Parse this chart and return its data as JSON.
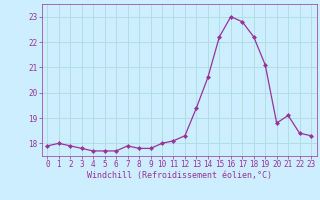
{
  "x": [
    0,
    1,
    2,
    3,
    4,
    5,
    6,
    7,
    8,
    9,
    10,
    11,
    12,
    13,
    14,
    15,
    16,
    17,
    18,
    19,
    20,
    21,
    22,
    23
  ],
  "y": [
    17.9,
    18.0,
    17.9,
    17.8,
    17.7,
    17.7,
    17.7,
    17.9,
    17.8,
    17.8,
    18.0,
    18.1,
    18.3,
    19.4,
    20.6,
    22.2,
    23.0,
    22.8,
    22.2,
    21.1,
    18.8,
    19.1,
    18.4,
    18.3
  ],
  "line_color": "#993399",
  "marker": "D",
  "marker_size": 2.0,
  "bg_color": "#cceeff",
  "grid_color": "#aadddd",
  "xlabel": "Windchill (Refroidissement éolien,°C)",
  "ylim_min": 17.5,
  "ylim_max": 23.5,
  "xlim_min": -0.5,
  "xlim_max": 23.5,
  "yticks": [
    18,
    19,
    20,
    21,
    22,
    23
  ],
  "xticks": [
    0,
    1,
    2,
    3,
    4,
    5,
    6,
    7,
    8,
    9,
    10,
    11,
    12,
    13,
    14,
    15,
    16,
    17,
    18,
    19,
    20,
    21,
    22,
    23
  ],
  "tick_fontsize": 5.5,
  "xlabel_fontsize": 6.0,
  "label_color": "#993399"
}
